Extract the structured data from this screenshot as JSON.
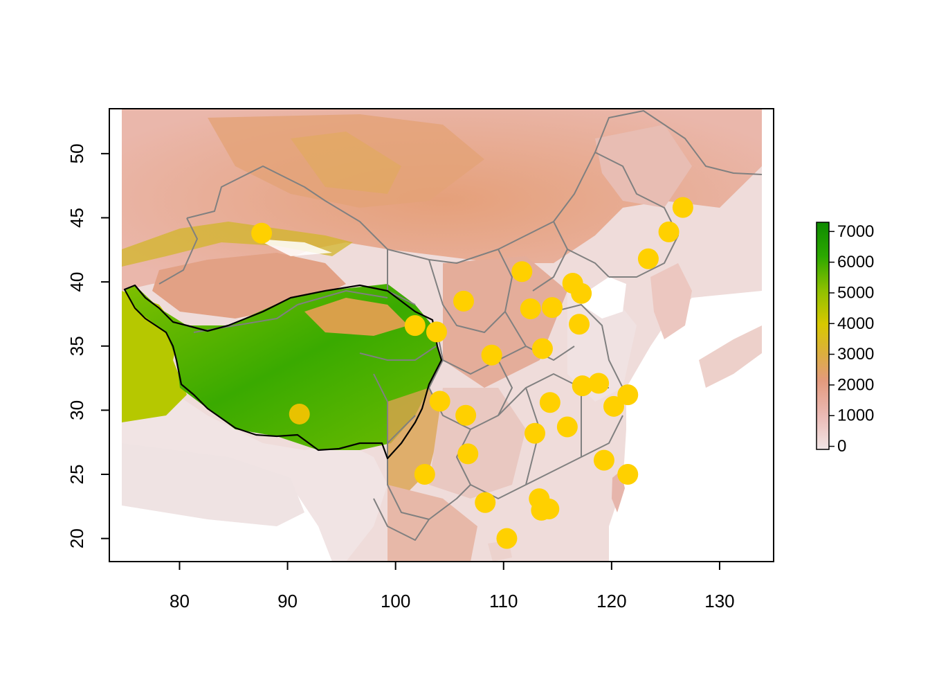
{
  "chart_data": {
    "type": "scatter",
    "basemap": "elevation raster",
    "x_axis": {
      "range": [
        73.5,
        135.0
      ],
      "ticks": [
        80,
        90,
        100,
        110,
        120,
        130
      ],
      "tick_labels": [
        "80",
        "90",
        "100",
        "110",
        "120",
        "130"
      ]
    },
    "y_axis": {
      "range": [
        18.2,
        53.5
      ],
      "ticks": [
        20,
        25,
        30,
        35,
        40,
        45,
        50
      ],
      "tick_labels": [
        "20",
        "25",
        "30",
        "35",
        "40",
        "45",
        "50"
      ]
    },
    "legend": {
      "title": "",
      "placement": "right",
      "min": -100,
      "max": 7300,
      "colors": [
        "#f1e6e6",
        "#ebb9b4",
        "#e39a7e",
        "#dcae3f",
        "#d8c800",
        "#8fc000",
        "#2ca800",
        "#0e8a00"
      ],
      "ticks": [
        0,
        1000,
        2000,
        3000,
        4000,
        5000,
        6000,
        7000
      ],
      "tick_labels": [
        "0",
        "1000",
        "2000",
        "3000",
        "4000",
        "5000",
        "6000",
        "7000"
      ]
    },
    "point_color": "#ffd000",
    "point_color_plateau": "#e8c200",
    "points": [
      {
        "lon": 87.6,
        "lat": 43.8
      },
      {
        "lon": 91.1,
        "lat": 29.7
      },
      {
        "lon": 101.8,
        "lat": 36.6
      },
      {
        "lon": 103.8,
        "lat": 36.1
      },
      {
        "lon": 106.3,
        "lat": 38.5
      },
      {
        "lon": 111.7,
        "lat": 40.8
      },
      {
        "lon": 108.9,
        "lat": 34.3
      },
      {
        "lon": 112.5,
        "lat": 37.9
      },
      {
        "lon": 114.5,
        "lat": 38.0
      },
      {
        "lon": 116.4,
        "lat": 39.9
      },
      {
        "lon": 117.2,
        "lat": 39.1
      },
      {
        "lon": 117.0,
        "lat": 36.7
      },
      {
        "lon": 113.6,
        "lat": 34.8
      },
      {
        "lon": 123.4,
        "lat": 41.8
      },
      {
        "lon": 125.3,
        "lat": 43.9
      },
      {
        "lon": 126.6,
        "lat": 45.8
      },
      {
        "lon": 104.1,
        "lat": 30.7
      },
      {
        "lon": 106.5,
        "lat": 29.6
      },
      {
        "lon": 106.7,
        "lat": 26.6
      },
      {
        "lon": 102.7,
        "lat": 25.0
      },
      {
        "lon": 108.3,
        "lat": 22.8
      },
      {
        "lon": 110.3,
        "lat": 20.0
      },
      {
        "lon": 113.3,
        "lat": 23.1
      },
      {
        "lon": 113.5,
        "lat": 22.2
      },
      {
        "lon": 114.2,
        "lat": 22.3
      },
      {
        "lon": 112.9,
        "lat": 28.2
      },
      {
        "lon": 114.3,
        "lat": 30.6
      },
      {
        "lon": 115.9,
        "lat": 28.7
      },
      {
        "lon": 117.3,
        "lat": 31.9
      },
      {
        "lon": 118.8,
        "lat": 32.1
      },
      {
        "lon": 120.2,
        "lat": 30.3
      },
      {
        "lon": 121.5,
        "lat": 31.2
      },
      {
        "lon": 119.3,
        "lat": 26.1
      },
      {
        "lon": 121.5,
        "lat": 25.0
      }
    ]
  }
}
